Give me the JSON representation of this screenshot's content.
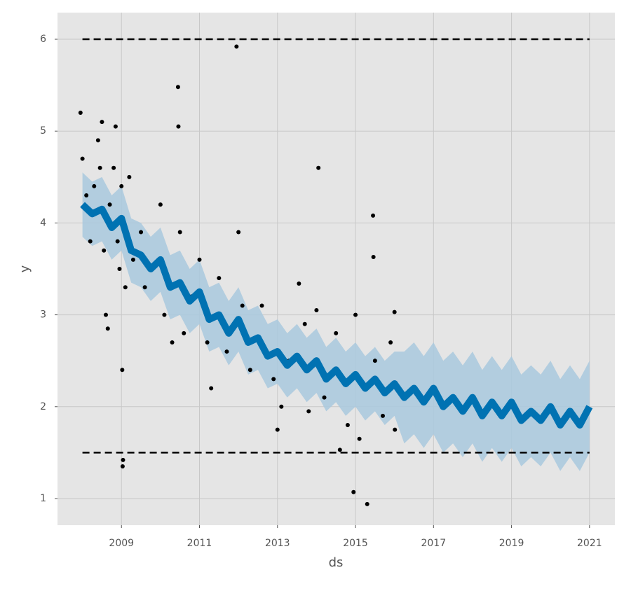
{
  "chart_data": {
    "type": "line",
    "x_label": "ds",
    "y_label": "y",
    "xlim": [
      2007.36,
      2021.65
    ],
    "ylim": [
      0.71,
      6.29
    ],
    "xticks": [
      2009,
      2011,
      2013,
      2015,
      2017,
      2019,
      2021
    ],
    "yticks": [
      1,
      2,
      3,
      4,
      5,
      6
    ],
    "grid": true,
    "cap": 6,
    "floor": 1.5,
    "forecast_color": "#0072b2",
    "band_color": "#a9c9de",
    "point_color": "#000000",
    "limit_color": "#000000",
    "forecast": {
      "x": [
        2008.0,
        2008.25,
        2008.5,
        2008.75,
        2009.0,
        2009.25,
        2009.5,
        2009.75,
        2010.0,
        2010.25,
        2010.5,
        2010.75,
        2011.0,
        2011.25,
        2011.5,
        2011.75,
        2012.0,
        2012.25,
        2012.5,
        2012.75,
        2013.0,
        2013.25,
        2013.5,
        2013.75,
        2014.0,
        2014.25,
        2014.5,
        2014.75,
        2015.0,
        2015.25,
        2015.5,
        2015.75,
        2016.0,
        2016.25,
        2016.5,
        2016.75,
        2017.0,
        2017.25,
        2017.5,
        2017.75,
        2018.0,
        2018.25,
        2018.5,
        2018.75,
        2019.0,
        2019.25,
        2019.5,
        2019.75,
        2020.0,
        2020.25,
        2020.5,
        2020.75,
        2021.0
      ],
      "values": [
        4.2,
        4.1,
        4.15,
        3.95,
        4.05,
        3.7,
        3.65,
        3.5,
        3.6,
        3.3,
        3.35,
        3.15,
        3.25,
        2.95,
        3.0,
        2.8,
        2.95,
        2.7,
        2.75,
        2.55,
        2.6,
        2.45,
        2.55,
        2.4,
        2.5,
        2.3,
        2.4,
        2.25,
        2.35,
        2.2,
        2.3,
        2.15,
        2.25,
        2.1,
        2.2,
        2.05,
        2.2,
        2.0,
        2.1,
        1.95,
        2.1,
        1.9,
        2.05,
        1.9,
        2.05,
        1.85,
        1.95,
        1.85,
        2.0,
        1.8,
        1.95,
        1.8,
        2.0
      ],
      "lower": [
        3.85,
        3.75,
        3.8,
        3.6,
        3.7,
        3.35,
        3.3,
        3.15,
        3.25,
        2.95,
        3.0,
        2.8,
        2.9,
        2.6,
        2.65,
        2.45,
        2.6,
        2.35,
        2.4,
        2.2,
        2.25,
        2.1,
        2.2,
        2.05,
        2.15,
        1.95,
        2.05,
        1.9,
        2.0,
        1.85,
        1.95,
        1.8,
        1.9,
        1.6,
        1.7,
        1.55,
        1.7,
        1.5,
        1.6,
        1.45,
        1.6,
        1.4,
        1.55,
        1.4,
        1.55,
        1.35,
        1.45,
        1.35,
        1.5,
        1.3,
        1.45,
        1.3,
        1.5
      ],
      "upper": [
        4.55,
        4.45,
        4.5,
        4.3,
        4.4,
        4.05,
        4.0,
        3.85,
        3.95,
        3.65,
        3.7,
        3.5,
        3.6,
        3.3,
        3.35,
        3.15,
        3.3,
        3.05,
        3.1,
        2.9,
        2.95,
        2.8,
        2.9,
        2.75,
        2.85,
        2.65,
        2.75,
        2.6,
        2.7,
        2.55,
        2.65,
        2.5,
        2.6,
        2.6,
        2.7,
        2.55,
        2.7,
        2.5,
        2.6,
        2.45,
        2.6,
        2.4,
        2.55,
        2.4,
        2.55,
        2.35,
        2.45,
        2.35,
        2.5,
        2.3,
        2.45,
        2.3,
        2.5
      ]
    },
    "observed": {
      "x": [
        2007.95,
        2008.0,
        2008.1,
        2008.2,
        2008.3,
        2008.4,
        2008.45,
        2008.5,
        2008.55,
        2008.6,
        2008.65,
        2008.7,
        2008.8,
        2008.85,
        2008.9,
        2008.95,
        2009.0,
        2009.02,
        2009.04,
        2009.03,
        2009.1,
        2009.2,
        2009.3,
        2009.5,
        2009.6,
        2009.8,
        2010.0,
        2010.1,
        2010.3,
        2010.45,
        2010.46,
        2010.5,
        2010.6,
        2010.8,
        2011.0,
        2011.2,
        2011.3,
        2011.5,
        2011.7,
        2011.95,
        2012.0,
        2012.1,
        2012.3,
        2012.6,
        2012.9,
        2013.0,
        2013.1,
        2013.3,
        2013.55,
        2013.7,
        2013.8,
        2014.0,
        2014.05,
        2014.2,
        2014.5,
        2014.6,
        2014.8,
        2014.95,
        2015.0,
        2015.1,
        2015.3,
        2015.45,
        2015.46,
        2015.5,
        2015.7,
        2015.9,
        2016.0,
        2016.01
      ],
      "y": [
        5.2,
        4.7,
        4.3,
        3.8,
        4.4,
        4.9,
        4.6,
        5.1,
        3.7,
        3.0,
        2.85,
        4.2,
        4.6,
        5.05,
        3.8,
        3.5,
        4.4,
        2.4,
        1.42,
        1.35,
        3.3,
        4.5,
        3.6,
        3.9,
        3.3,
        3.5,
        4.2,
        3.0,
        2.7,
        5.48,
        5.05,
        3.9,
        2.8,
        3.2,
        3.6,
        2.7,
        2.2,
        3.4,
        2.6,
        5.92,
        3.9,
        3.1,
        2.4,
        3.1,
        2.3,
        1.75,
        2.0,
        2.5,
        3.34,
        2.9,
        1.95,
        3.05,
        4.6,
        2.1,
        2.8,
        1.53,
        1.8,
        1.07,
        3.0,
        1.65,
        0.94,
        4.08,
        3.63,
        2.5,
        1.9,
        2.7,
        3.03,
        1.75
      ]
    }
  }
}
